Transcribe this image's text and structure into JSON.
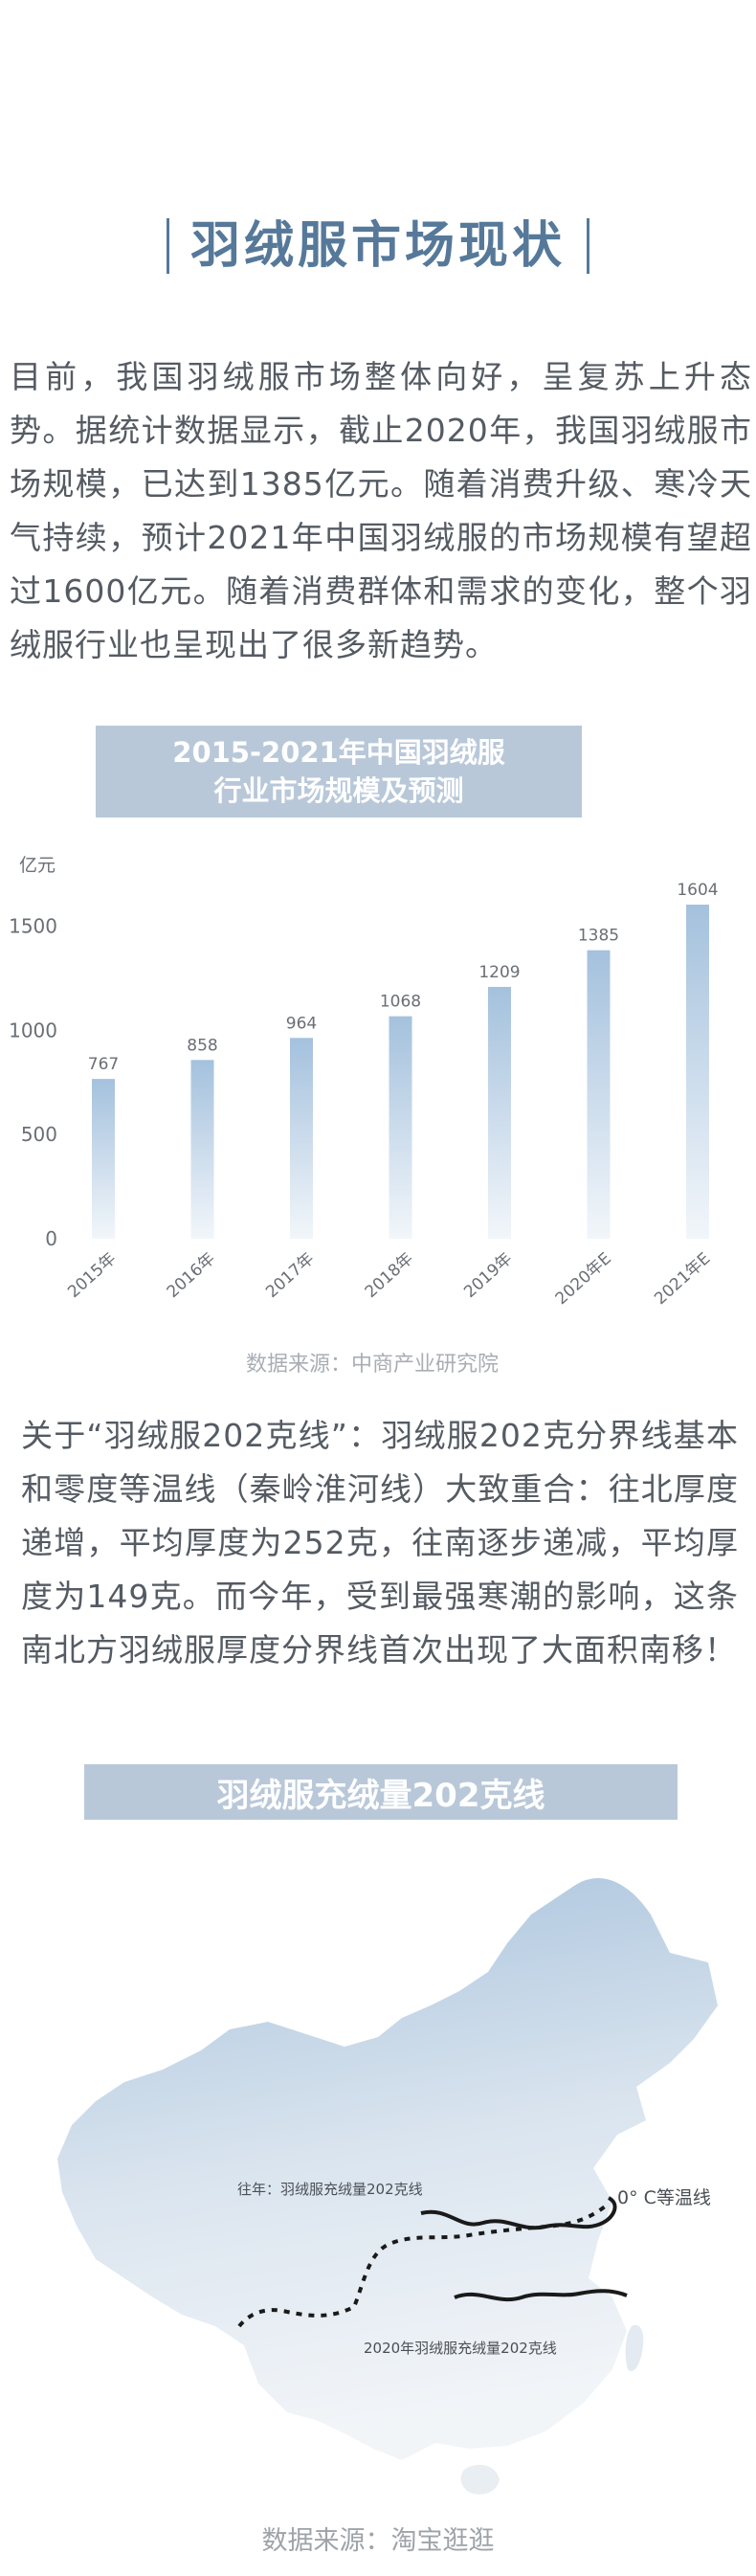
{
  "section_title": "羽绒服市场现状",
  "paragraph1": "目前，我国羽绒服市场整体向好，呈复苏上升态势。据统计数据显示，截止2020年，我国羽绒服市场规模，已达到1385亿元。随着消费升级、寒冷天气持续，预计2021年中国羽绒服的市场规模有望超过1600亿元。随着消费群体和需求的变化，整个羽绒服行业也呈现出了很多新趋势。",
  "chart_banner": {
    "line1": "2015-2021年中国羽绒服",
    "line2": "行业市场规模及预测"
  },
  "chart_data": {
    "type": "bar",
    "title": "2015-2021年中国羽绒服行业市场规模及预测",
    "ylabel": "亿元",
    "ylim": [
      0,
      1650
    ],
    "yticks": [
      "0",
      "500",
      "1000",
      "1500"
    ],
    "categories": [
      "2015年",
      "2016年",
      "2017年",
      "2018年",
      "2019年",
      "2020年E",
      "2021年E"
    ],
    "values": [
      767,
      858,
      964,
      1068,
      1209,
      1385,
      1604
    ],
    "value_labels": [
      "767",
      "858",
      "964",
      "1068",
      "1209",
      "1385",
      "1604"
    ],
    "grid": false,
    "bar_color": "#a4c1dd"
  },
  "source1": "数据来源：中商产业研究院",
  "paragraph2": "关于“羽绒服202克线”：羽绒服202克分界线基本和零度等温线（秦岭淮河线）大致重合：往北厚度递增，平均厚度为252克，往南逐步递减，平均厚度为149克。而今年，受到最强寒潮的影响，这条南北方羽绒服厚度分界线首次出现了大面积南移！",
  "map_banner": "羽绒服充绒量202克线",
  "map": {
    "label_past": "往年：羽绒服充绒量202克线",
    "label_zero": "0° C等温线",
    "label_2020": "2020年羽绒服充绒量202克线"
  },
  "source2": "数据来源：淘宝逛逛",
  "colors": {
    "accent": "#56799a",
    "banner": "#b8c8d9",
    "text": "#555b63",
    "source": "#a9aeb4"
  }
}
